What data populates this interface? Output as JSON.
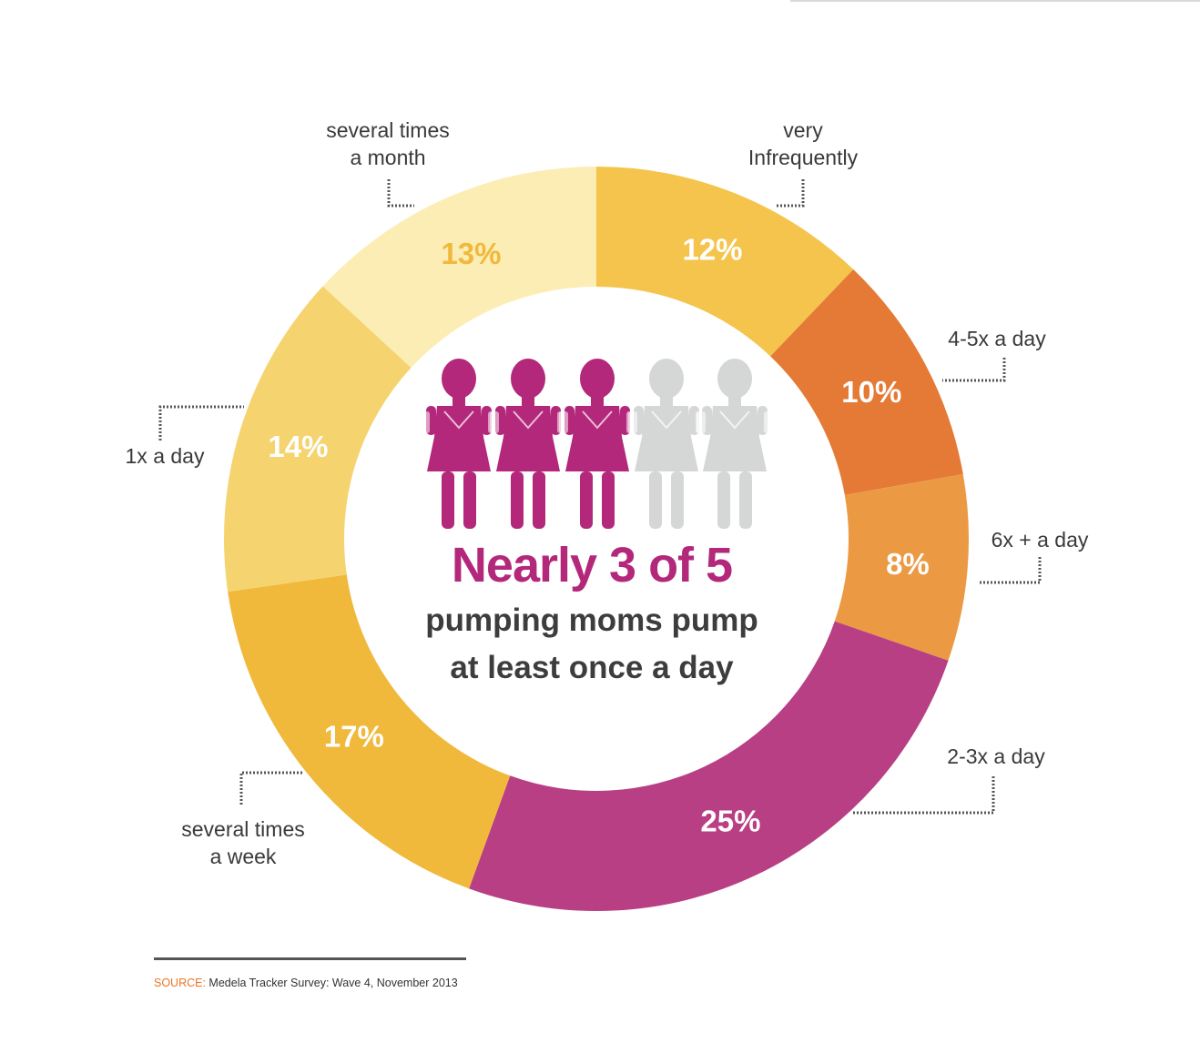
{
  "chart_data": {
    "type": "pie",
    "subtype": "donut",
    "title": "",
    "categories": [
      "very Infrequently",
      "4-5x a day",
      "6x + a day",
      "2-3x a day",
      "several times a week",
      "1x a day",
      "several times a month"
    ],
    "values": [
      12,
      10,
      8,
      25,
      17,
      14,
      13
    ],
    "value_labels": [
      "12%",
      "10%",
      "8%",
      "25%",
      "17%",
      "14%",
      "13%"
    ],
    "label_lines": [
      [
        "very",
        "Infrequently"
      ],
      [
        "4-5x a day"
      ],
      [
        "6x + a day"
      ],
      [
        "2-3x a day"
      ],
      [
        "several times",
        "a week"
      ],
      [
        "1x a day"
      ],
      [
        "several times",
        "a month"
      ]
    ],
    "colors": [
      "#f4c44c",
      "#e47a35",
      "#eb9a43",
      "#b83f84",
      "#f0b93c",
      "#f5d36e",
      "#fbedb3"
    ],
    "value_label_colors": [
      "#ffffff",
      "#ffffff",
      "#ffffff",
      "#ffffff",
      "#ffffff",
      "#ffffff",
      "#f0b93c"
    ],
    "legend": "none",
    "grid": false
  },
  "center": {
    "headline": "Nearly 3 of 5",
    "line1": "pumping moms pump",
    "line2": "at least once a day",
    "highlight_color": "#b3287a",
    "figures_total": 5,
    "figures_highlighted": 3,
    "figure_icon": "pumping-mother-icon",
    "muted_color": "#d5d7d6"
  },
  "footer": {
    "source_label": "SOURCE:",
    "source_text": " Medela Tracker Survey: Wave 4, November 2013"
  }
}
